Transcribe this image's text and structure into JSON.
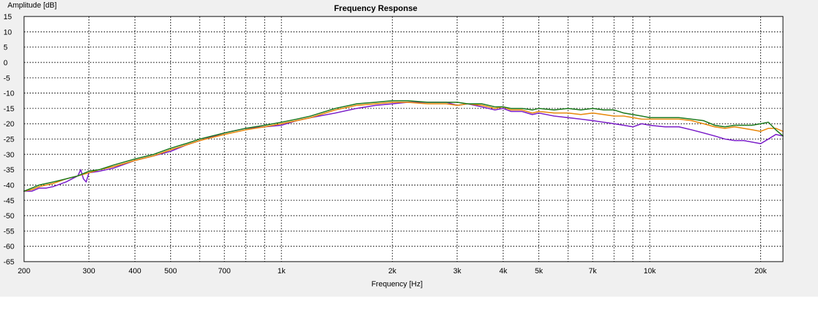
{
  "chart_data": {
    "type": "line",
    "title": "Frequency Response",
    "xlabel": "Frequency [Hz]",
    "ylabel": "Amplitude [dB]",
    "x_scale": "log",
    "xlim": [
      200,
      23000
    ],
    "ylim": [
      -65,
      15
    ],
    "grid": true,
    "y_ticks": [
      15,
      10,
      5,
      0,
      -5,
      -10,
      -15,
      -20,
      -25,
      -30,
      -35,
      -40,
      -45,
      -50,
      -55,
      -60,
      -65
    ],
    "x_ticks": [
      {
        "value": 200,
        "label": "200"
      },
      {
        "value": 300,
        "label": "300"
      },
      {
        "value": 400,
        "label": "400"
      },
      {
        "value": 500,
        "label": "500"
      },
      {
        "value": 700,
        "label": "700"
      },
      {
        "value": 1000,
        "label": "1k"
      },
      {
        "value": 2000,
        "label": "2k"
      },
      {
        "value": 3000,
        "label": "3k"
      },
      {
        "value": 4000,
        "label": "4k"
      },
      {
        "value": 5000,
        "label": "5k"
      },
      {
        "value": 7000,
        "label": "7k"
      },
      {
        "value": 10000,
        "label": "10k"
      },
      {
        "value": 20000,
        "label": "20k"
      }
    ],
    "x_gridlines": [
      200,
      300,
      400,
      500,
      600,
      700,
      800,
      900,
      1000,
      2000,
      3000,
      4000,
      5000,
      6000,
      7000,
      8000,
      9000,
      10000,
      20000
    ],
    "series": [
      {
        "color": "#7b1fc9",
        "x": [
          200,
          210,
          220,
          230,
          240,
          260,
          280,
          285,
          290,
          295,
          300,
          320,
          350,
          400,
          450,
          500,
          550,
          600,
          700,
          800,
          900,
          1000,
          1100,
          1200,
          1400,
          1600,
          1800,
          2000,
          2200,
          2500,
          2800,
          3000,
          3200,
          3500,
          3800,
          4000,
          4200,
          4500,
          4800,
          5000,
          5500,
          6000,
          6500,
          7000,
          7500,
          8000,
          8500,
          9000,
          9500,
          10000,
          11000,
          12000,
          13000,
          14000,
          15000,
          16000,
          17000,
          18000,
          19000,
          20000,
          21000,
          22000,
          23000
        ],
        "y": [
          -42,
          -42,
          -41,
          -41,
          -40.5,
          -39,
          -37,
          -35,
          -38,
          -39,
          -36,
          -35.5,
          -34.5,
          -32,
          -30.5,
          -29,
          -27,
          -25.5,
          -23,
          -21.5,
          -21,
          -20.5,
          -19,
          -18,
          -16.5,
          -15,
          -14,
          -13.5,
          -13,
          -13,
          -13,
          -14,
          -13.5,
          -14.5,
          -15.5,
          -15,
          -16,
          -16,
          -17,
          -16.5,
          -17.5,
          -18,
          -18.5,
          -19,
          -19.5,
          -20,
          -20.5,
          -21,
          -20,
          -20.5,
          -21,
          -21,
          -22,
          -23,
          -24,
          -25,
          -25.5,
          -25.5,
          -26,
          -26.5,
          -25,
          -23.5,
          -24
        ]
      },
      {
        "color": "#e8890c",
        "x": [
          200,
          210,
          220,
          230,
          240,
          260,
          280,
          300,
          320,
          350,
          400,
          450,
          500,
          550,
          600,
          700,
          800,
          900,
          1000,
          1100,
          1200,
          1400,
          1600,
          1800,
          2000,
          2200,
          2500,
          2800,
          3000,
          3200,
          3500,
          3800,
          4000,
          4200,
          4500,
          4800,
          5000,
          5500,
          6000,
          6500,
          7000,
          7500,
          8000,
          8500,
          9000,
          9500,
          10000,
          11000,
          12000,
          13000,
          14000,
          15000,
          16000,
          17000,
          18000,
          19000,
          20000,
          21000,
          22000,
          23000
        ],
        "y": [
          -42,
          -41.5,
          -40.5,
          -40,
          -39.5,
          -38,
          -37,
          -36,
          -35,
          -34,
          -32,
          -30.5,
          -28.5,
          -27,
          -25.5,
          -23.5,
          -22,
          -21,
          -20,
          -19,
          -18,
          -15.5,
          -14,
          -13.5,
          -13,
          -13,
          -13.5,
          -13.5,
          -14,
          -13.5,
          -14,
          -15,
          -14.5,
          -15.5,
          -15.5,
          -16.5,
          -16,
          -16.5,
          -16.5,
          -17,
          -16.5,
          -17,
          -17.5,
          -17.5,
          -18,
          -18.5,
          -18.5,
          -18.5,
          -18.5,
          -19,
          -20,
          -21,
          -21.5,
          -21,
          -21.5,
          -22,
          -22.5,
          -21.5,
          -21.5,
          -22.5
        ]
      },
      {
        "color": "#1e7a1e",
        "x": [
          200,
          210,
          220,
          230,
          240,
          260,
          280,
          300,
          320,
          350,
          400,
          450,
          500,
          550,
          600,
          700,
          800,
          900,
          1000,
          1100,
          1200,
          1400,
          1600,
          1800,
          2000,
          2200,
          2500,
          2800,
          3000,
          3200,
          3500,
          3800,
          4000,
          4200,
          4500,
          4800,
          5000,
          5500,
          6000,
          6500,
          7000,
          7500,
          8000,
          8500,
          9000,
          9500,
          10000,
          11000,
          12000,
          13000,
          14000,
          15000,
          16000,
          17000,
          18000,
          19000,
          20000,
          21000,
          22000,
          23000
        ],
        "y": [
          -42,
          -41,
          -40,
          -39.5,
          -39,
          -38,
          -37,
          -35.5,
          -35,
          -33.5,
          -31.5,
          -30,
          -28,
          -26.5,
          -25,
          -23,
          -21.5,
          -20.5,
          -19.5,
          -18.5,
          -17.5,
          -15,
          -13.5,
          -13,
          -12.5,
          -12.5,
          -13,
          -13,
          -13,
          -13.5,
          -13.5,
          -14.5,
          -14.5,
          -15,
          -15,
          -15.5,
          -15,
          -15.5,
          -15,
          -15.5,
          -15,
          -15.5,
          -15.5,
          -16.5,
          -17,
          -17.5,
          -18,
          -18,
          -18,
          -18.5,
          -19,
          -20.5,
          -21,
          -20.5,
          -20.5,
          -20.5,
          -20,
          -19.5,
          -22,
          -24
        ]
      }
    ]
  }
}
